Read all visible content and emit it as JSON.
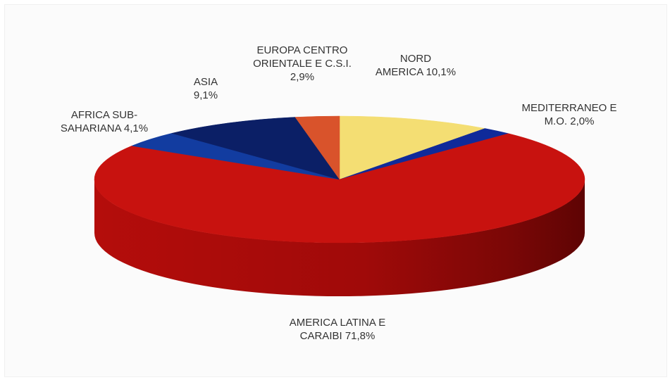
{
  "chart_data": {
    "type": "pie",
    "style": "3d",
    "title": "",
    "slices": [
      {
        "name": "NORD AMERICA",
        "value": 10.1,
        "label": [
          "NORD",
          "AMERICA 10,1%"
        ],
        "color": "#f4de73"
      },
      {
        "name": "MEDITERRANEO E M.O.",
        "value": 2.0,
        "label": [
          "MEDITERRANEO E",
          "M.O. 2,0%"
        ],
        "color": "#0f2a9a"
      },
      {
        "name": "AMERICA LATINA E CARAIBI",
        "value": 71.8,
        "label": [
          "AMERICA LATINA E",
          "CARAIBI 71,8%"
        ],
        "color": "#c8120f"
      },
      {
        "name": "AFRICA SUB-SAHARIANA",
        "value": 4.1,
        "label": [
          "AFRICA SUB-",
          "SAHARIANA 4,1%"
        ],
        "color": "#123ca0"
      },
      {
        "name": "ASIA",
        "value": 9.1,
        "label": [
          "ASIA",
          "9,1%"
        ],
        "color": "#0b1f66"
      },
      {
        "name": "EUROPA CENTRO ORIENTALE E C.S.I.",
        "value": 2.9,
        "label": [
          "EUROPA CENTRO",
          "ORIENTALE  E C.S.I.",
          "2,9%"
        ],
        "color": "#d9532b"
      }
    ]
  }
}
